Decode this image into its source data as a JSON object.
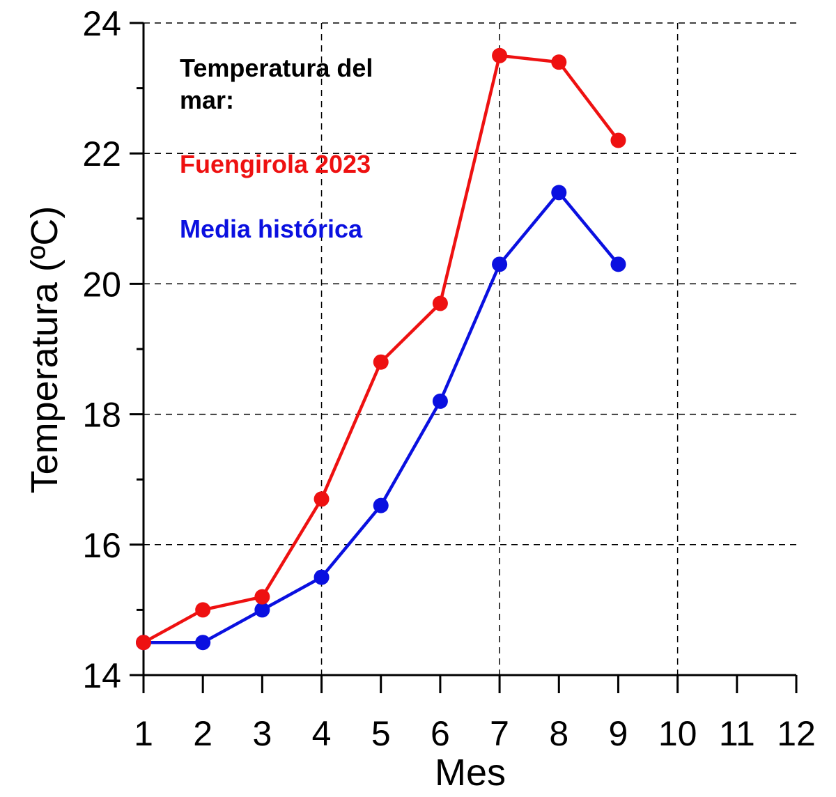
{
  "chart_data": {
    "type": "line",
    "xlabel": "Mes",
    "ylabel": "Temperatura (ºC)",
    "xlim": [
      1,
      12
    ],
    "ylim": [
      14,
      24
    ],
    "x_ticks": [
      "1",
      "2",
      "3",
      "4",
      "5",
      "6",
      "7",
      "8",
      "9",
      "10",
      "11",
      "12"
    ],
    "y_ticks": [
      "14",
      "16",
      "18",
      "20",
      "22",
      "24"
    ],
    "grid": true,
    "legend": {
      "heading": [
        "Temperatura del",
        "mar:"
      ],
      "placement": "top-left"
    },
    "series": [
      {
        "name": "Fuengirola 2023",
        "color": "#ee1111",
        "x": [
          1,
          2,
          3,
          4,
          5,
          6,
          7,
          8,
          9
        ],
        "values": [
          14.5,
          15.0,
          15.2,
          16.7,
          18.8,
          19.7,
          23.5,
          23.4,
          22.2
        ]
      },
      {
        "name": "Media histórica",
        "color": "#0a10e0",
        "x": [
          1,
          2,
          3,
          4,
          5,
          6,
          7,
          8,
          9
        ],
        "values": [
          14.5,
          14.5,
          15.0,
          15.5,
          16.6,
          18.2,
          20.3,
          21.4,
          20.3
        ]
      }
    ]
  }
}
